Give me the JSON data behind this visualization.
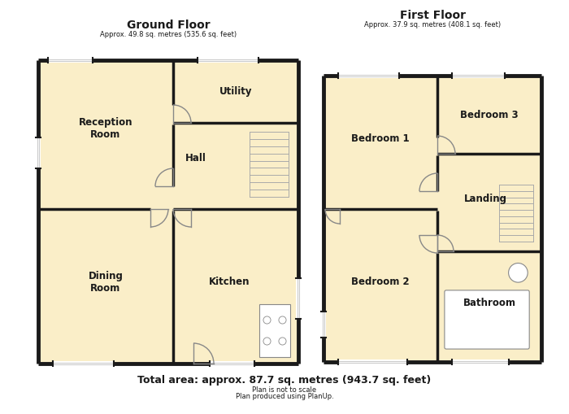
{
  "bg_color": "#ffffff",
  "wall_color": "#1a1a1a",
  "room_fill": "#faeec8",
  "lw_outer": 3.5,
  "lw_inner": 2.5,
  "title_gf": "Ground Floor",
  "subtitle_gf": "Approx. 49.8 sq. metres (535.6 sq. feet)",
  "title_ff": "First Floor",
  "subtitle_ff": "Approx. 37.9 sq. metres (408.1 sq. feet)",
  "footer1": "Total area: approx. 87.7 sq. metres (943.7 sq. feet)",
  "footer2": "Plan is not to scale",
  "footer3": "Plan produced using PlanUp.",
  "text_color": "#1a1a1a",
  "window_color": "#cccccc",
  "door_color": "#888888",
  "stair_color": "#aaaaaa"
}
